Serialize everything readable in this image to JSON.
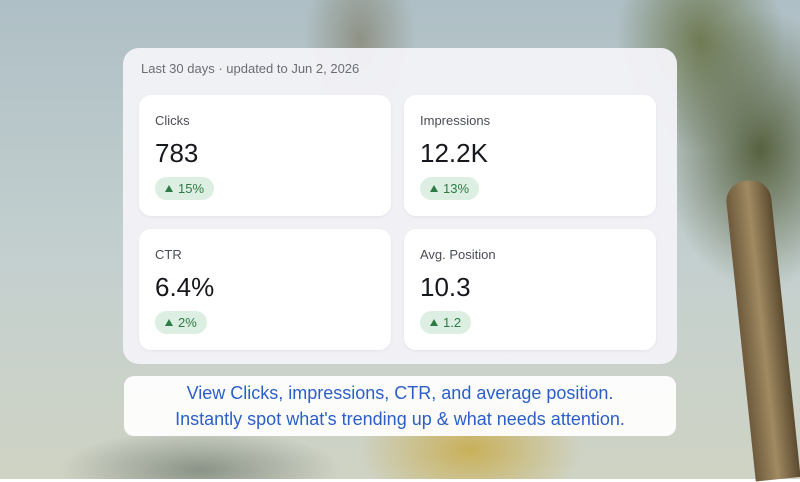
{
  "header": {
    "subtitle": "Last 30 days · updated to Jun 2, 2026"
  },
  "cards": [
    {
      "label": "Clicks",
      "value": "783",
      "change": "15%"
    },
    {
      "label": "Impressions",
      "value": "12.2K",
      "change": "13%"
    },
    {
      "label": "CTR",
      "value": "6.4%",
      "change": "2%"
    },
    {
      "label": "Avg. Position",
      "value": "10.3",
      "change": "1.2"
    }
  ],
  "caption": {
    "lines": [
      "View Clicks, impressions, CTR, and average position.",
      "Instantly spot what's trending up & what needs attention."
    ]
  }
}
